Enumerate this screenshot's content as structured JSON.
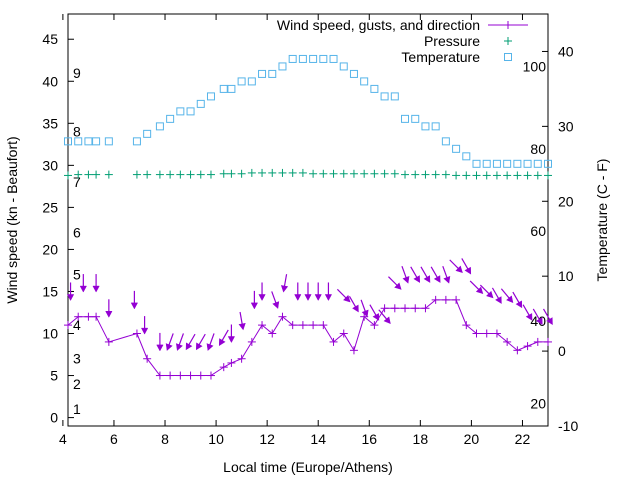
{
  "chart_data": {
    "type": "line",
    "xlabel": "Local time (Europe/Athens)",
    "ylabel": "Wind speed (kn - Beaufort)",
    "y2label": "Temperature (C - F)",
    "xlim": [
      4.2,
      23
    ],
    "ylim": [
      -1,
      48
    ],
    "y2lim": [
      -10,
      45
    ],
    "x_ticks": [
      4,
      6,
      8,
      10,
      12,
      14,
      16,
      18,
      20,
      22
    ],
    "y_ticks": [
      0,
      5,
      10,
      15,
      20,
      25,
      30,
      35,
      40,
      45
    ],
    "y2_ticks": [
      -10,
      0,
      10,
      20,
      30,
      40
    ],
    "beaufort_labels": [
      {
        "text": "1",
        "y": 1
      },
      {
        "text": "2",
        "y": 4
      },
      {
        "text": "3",
        "y": 7
      },
      {
        "text": "4",
        "y": 11
      },
      {
        "text": "5",
        "y": 17
      },
      {
        "text": "6",
        "y": 22
      },
      {
        "text": "7",
        "y": 28
      },
      {
        "text": "8",
        "y": 34
      },
      {
        "text": "9",
        "y": 41
      }
    ],
    "fahrenheit_labels": [
      {
        "text": "20",
        "y2": -7
      },
      {
        "text": "40",
        "y2": 4
      },
      {
        "text": "60",
        "y2": 16
      },
      {
        "text": "80",
        "y2": 27
      },
      {
        "text": "100",
        "y2": 38
      }
    ],
    "legend_position": "top-right",
    "series": [
      {
        "name": "Wind speed, gusts, and direction",
        "color": "#9400d3",
        "marker": "plus-line",
        "x": [
          4.2,
          4.6,
          5.0,
          5.3,
          5.8,
          6.9,
          7.3,
          7.8,
          8.2,
          8.6,
          9.0,
          9.4,
          9.8,
          10.3,
          10.6,
          11.0,
          11.4,
          11.8,
          12.2,
          12.6,
          13.0,
          13.4,
          13.8,
          14.2,
          14.6,
          15.0,
          15.4,
          15.8,
          16.2,
          16.6,
          17.0,
          17.4,
          17.8,
          18.2,
          18.6,
          19.0,
          19.4,
          19.8,
          20.2,
          20.6,
          21.0,
          21.4,
          21.8,
          22.2,
          22.6,
          23.0
        ],
        "y": [
          11,
          12,
          12,
          12,
          9,
          10,
          7,
          5,
          5,
          5,
          5,
          5,
          5,
          6,
          6.5,
          7,
          9,
          11,
          10,
          12,
          11,
          11,
          11,
          11,
          9,
          10,
          8,
          12,
          11,
          13,
          13,
          13,
          13,
          13,
          14,
          14,
          14,
          11,
          10,
          10,
          10,
          9,
          8,
          8.5,
          9,
          9
        ]
      },
      {
        "name": "gusts",
        "color": "#9400d3",
        "marker": "arrow",
        "points": [
          {
            "x": 4.3,
            "y": 15,
            "dir": 180
          },
          {
            "x": 4.8,
            "y": 16,
            "dir": 180
          },
          {
            "x": 5.3,
            "y": 16,
            "dir": 180
          },
          {
            "x": 5.8,
            "y": 13,
            "dir": 180
          },
          {
            "x": 6.8,
            "y": 14,
            "dir": 180
          },
          {
            "x": 7.2,
            "y": 11,
            "dir": 180
          },
          {
            "x": 7.8,
            "y": 9,
            "dir": 180
          },
          {
            "x": 8.2,
            "y": 9,
            "dir": 200
          },
          {
            "x": 8.6,
            "y": 9,
            "dir": 200
          },
          {
            "x": 9.0,
            "y": 9,
            "dir": 210
          },
          {
            "x": 9.4,
            "y": 9,
            "dir": 210
          },
          {
            "x": 9.8,
            "y": 9,
            "dir": 200
          },
          {
            "x": 10.3,
            "y": 9.5,
            "dir": 210
          },
          {
            "x": 10.6,
            "y": 10,
            "dir": 180
          },
          {
            "x": 11.0,
            "y": 11.5,
            "dir": 170
          },
          {
            "x": 11.5,
            "y": 14,
            "dir": 180
          },
          {
            "x": 11.8,
            "y": 15,
            "dir": 180
          },
          {
            "x": 12.3,
            "y": 14,
            "dir": 160
          },
          {
            "x": 12.7,
            "y": 16,
            "dir": 190
          },
          {
            "x": 13.2,
            "y": 15,
            "dir": 180
          },
          {
            "x": 13.6,
            "y": 15,
            "dir": 180
          },
          {
            "x": 14.0,
            "y": 15,
            "dir": 180
          },
          {
            "x": 14.4,
            "y": 15,
            "dir": 180
          },
          {
            "x": 15.0,
            "y": 14.5,
            "dir": 135
          },
          {
            "x": 15.4,
            "y": 13.5,
            "dir": 150
          },
          {
            "x": 15.8,
            "y": 13,
            "dir": 160
          },
          {
            "x": 16.2,
            "y": 12.5,
            "dir": 150
          },
          {
            "x": 16.6,
            "y": 12,
            "dir": 140
          },
          {
            "x": 17.0,
            "y": 16,
            "dir": 135
          },
          {
            "x": 17.4,
            "y": 17,
            "dir": 160
          },
          {
            "x": 17.8,
            "y": 17,
            "dir": 150
          },
          {
            "x": 18.2,
            "y": 17,
            "dir": 150
          },
          {
            "x": 18.6,
            "y": 17,
            "dir": 150
          },
          {
            "x": 19.0,
            "y": 17,
            "dir": 160
          },
          {
            "x": 19.4,
            "y": 18,
            "dir": 135
          },
          {
            "x": 19.8,
            "y": 18,
            "dir": 150
          },
          {
            "x": 20.2,
            "y": 15.5,
            "dir": 135
          },
          {
            "x": 20.6,
            "y": 15,
            "dir": 135
          },
          {
            "x": 21.0,
            "y": 14.5,
            "dir": 150
          },
          {
            "x": 21.4,
            "y": 14.5,
            "dir": 140
          },
          {
            "x": 21.8,
            "y": 14,
            "dir": 150
          },
          {
            "x": 22.2,
            "y": 12.5,
            "dir": 150
          },
          {
            "x": 22.6,
            "y": 12,
            "dir": 150
          },
          {
            "x": 23.0,
            "y": 12,
            "dir": 150
          }
        ]
      },
      {
        "name": "Pressure",
        "color": "#009e73",
        "marker": "plus",
        "x": [
          4.2,
          4.6,
          5.0,
          5.3,
          5.8,
          6.9,
          7.3,
          7.8,
          8.2,
          8.6,
          9.0,
          9.4,
          9.8,
          10.3,
          10.6,
          11.0,
          11.4,
          11.8,
          12.2,
          12.6,
          13.0,
          13.4,
          13.8,
          14.2,
          14.6,
          15.0,
          15.4,
          15.8,
          16.2,
          16.6,
          17.0,
          17.4,
          17.8,
          18.2,
          18.6,
          19.0,
          19.4,
          19.8,
          20.2,
          20.6,
          21.0,
          21.4,
          21.8,
          22.2,
          22.6,
          23.0
        ],
        "y": [
          28.8,
          28.9,
          28.9,
          28.9,
          28.9,
          28.9,
          28.9,
          28.9,
          28.9,
          28.9,
          28.9,
          28.9,
          28.9,
          29.0,
          29.0,
          29.0,
          29.1,
          29.1,
          29.1,
          29.1,
          29.1,
          29.1,
          29.0,
          29.0,
          29.0,
          29.0,
          29.0,
          29.0,
          29.0,
          29.0,
          29.0,
          28.9,
          28.9,
          28.9,
          28.9,
          28.9,
          28.8,
          28.8,
          28.8,
          28.8,
          28.8,
          28.8,
          28.8,
          28.8,
          28.8,
          28.8
        ]
      },
      {
        "name": "Temperature",
        "color": "#56b4e9",
        "marker": "square",
        "axis": "y2",
        "x": [
          4.2,
          4.6,
          5.0,
          5.3,
          5.8,
          6.9,
          7.3,
          7.8,
          8.2,
          8.6,
          9.0,
          9.4,
          9.8,
          10.3,
          10.6,
          11.0,
          11.4,
          11.8,
          12.2,
          12.6,
          13.0,
          13.4,
          13.8,
          14.2,
          14.6,
          15.0,
          15.4,
          15.8,
          16.2,
          16.6,
          17.0,
          17.4,
          17.8,
          18.2,
          18.6,
          19.0,
          19.4,
          19.8,
          20.2,
          20.6,
          21.0,
          21.4,
          21.8,
          22.2,
          22.6,
          23.0
        ],
        "y": [
          28,
          28,
          28,
          28,
          28,
          28,
          29,
          30,
          31,
          32,
          32,
          33,
          34,
          35,
          35,
          36,
          36,
          37,
          37,
          38,
          39,
          39,
          39,
          39,
          39,
          38,
          37,
          36,
          35,
          34,
          34,
          31,
          31,
          30,
          30,
          28,
          27,
          26,
          25,
          25,
          25,
          25,
          25,
          25,
          25,
          25
        ]
      }
    ]
  }
}
